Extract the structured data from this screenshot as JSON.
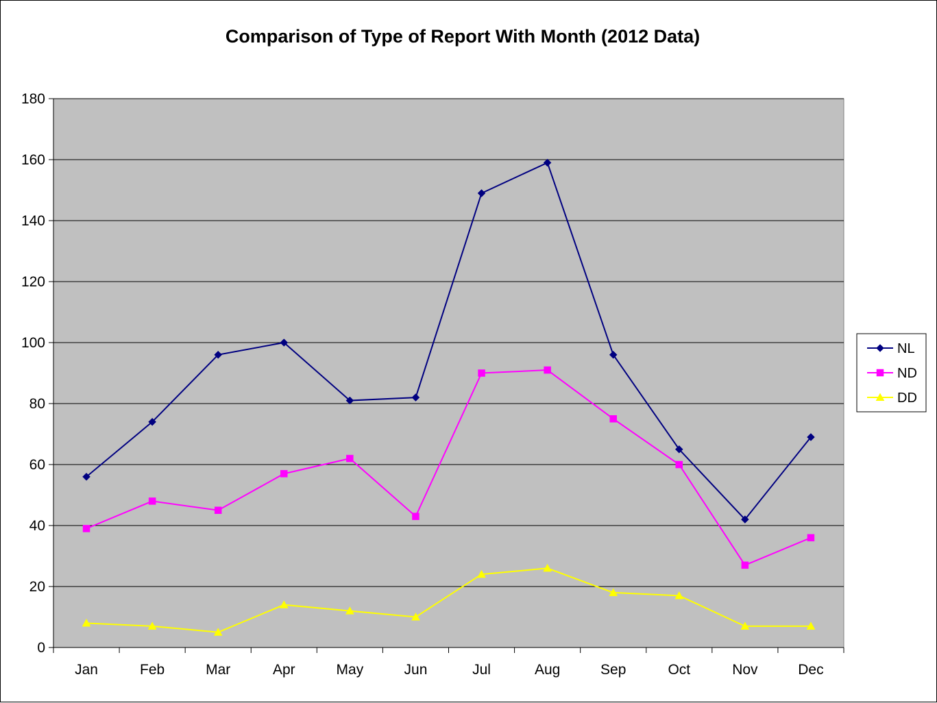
{
  "chart_data": {
    "type": "line",
    "title": "Comparison of Type of Report With Month (2012 Data)",
    "xlabel": "",
    "ylabel": "",
    "categories": [
      "Jan",
      "Feb",
      "Mar",
      "Apr",
      "May",
      "Jun",
      "Jul",
      "Aug",
      "Sep",
      "Oct",
      "Nov",
      "Dec"
    ],
    "ylim": [
      0,
      180
    ],
    "yticks": [
      0,
      20,
      40,
      60,
      80,
      100,
      120,
      140,
      160,
      180
    ],
    "grid": true,
    "plot_background": "#C0C0C0",
    "legend_position": "right",
    "series": [
      {
        "name": "NL",
        "color": "#000080",
        "marker": "diamond",
        "values": [
          56,
          74,
          96,
          100,
          81,
          82,
          149,
          159,
          96,
          65,
          42,
          69
        ]
      },
      {
        "name": "ND",
        "color": "#FF00FF",
        "marker": "square",
        "values": [
          39,
          48,
          45,
          57,
          62,
          43,
          90,
          91,
          75,
          60,
          27,
          36
        ]
      },
      {
        "name": "DD",
        "color": "#FFFF00",
        "marker": "triangle",
        "values": [
          8,
          7,
          5,
          14,
          12,
          10,
          24,
          26,
          18,
          17,
          7,
          7
        ]
      }
    ]
  }
}
